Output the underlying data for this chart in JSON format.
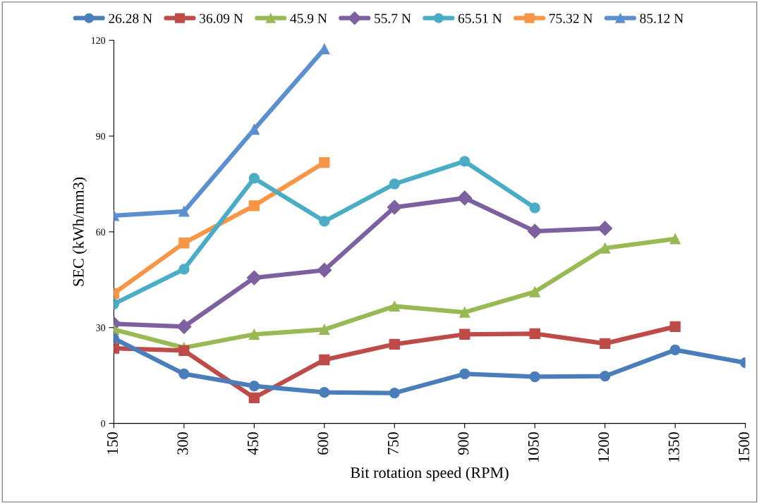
{
  "chart_data": {
    "type": "line",
    "xlabel": "Bit rotation speed (RPM)",
    "ylabel": "SEC (kWh/mm3)",
    "categories": [
      "150",
      "300",
      "450",
      "600",
      "750",
      "900",
      "1050",
      "1200",
      "1350",
      "1500"
    ],
    "ylim": [
      0,
      120
    ],
    "yticks": [
      0,
      30,
      60,
      90,
      120
    ],
    "grid": false,
    "legend": "top",
    "series": [
      {
        "name": "26.28 N",
        "color": "#4a7ebb",
        "marker": "circle",
        "values": [
          26.6,
          15.5,
          11.7,
          9.7,
          9.5,
          15.5,
          14.6,
          14.8,
          23.0,
          19.0
        ]
      },
      {
        "name": "36.09 N",
        "color": "#be4b48",
        "marker": "square",
        "values": [
          23.5,
          22.8,
          8.0,
          19.9,
          24.8,
          27.9,
          28.1,
          25.0,
          30.3,
          null
        ]
      },
      {
        "name": "45.9 N",
        "color": "#98b954",
        "marker": "triangle",
        "values": [
          29.4,
          23.7,
          27.9,
          29.4,
          36.7,
          34.8,
          41.2,
          54.9,
          57.8,
          null
        ]
      },
      {
        "name": "55.7 N",
        "color": "#7d60a0",
        "marker": "diamond",
        "values": [
          31.2,
          30.3,
          45.6,
          48.0,
          67.7,
          70.6,
          60.2,
          61.1,
          null,
          null
        ]
      },
      {
        "name": "65.51 N",
        "color": "#4bacc6",
        "marker": "circle",
        "values": [
          37.4,
          48.3,
          76.8,
          63.3,
          75.0,
          82.1,
          67.5,
          null,
          null,
          null
        ]
      },
      {
        "name": "75.32 N",
        "color": "#f79646",
        "marker": "square",
        "values": [
          40.7,
          56.5,
          68.2,
          81.7,
          null,
          null,
          null,
          null,
          null,
          null
        ]
      },
      {
        "name": "85.12 N",
        "color": "#5b8fd0",
        "marker": "triangle",
        "values": [
          65.1,
          66.4,
          92.1,
          117.3,
          null,
          null,
          null,
          null,
          null,
          null
        ]
      }
    ]
  }
}
